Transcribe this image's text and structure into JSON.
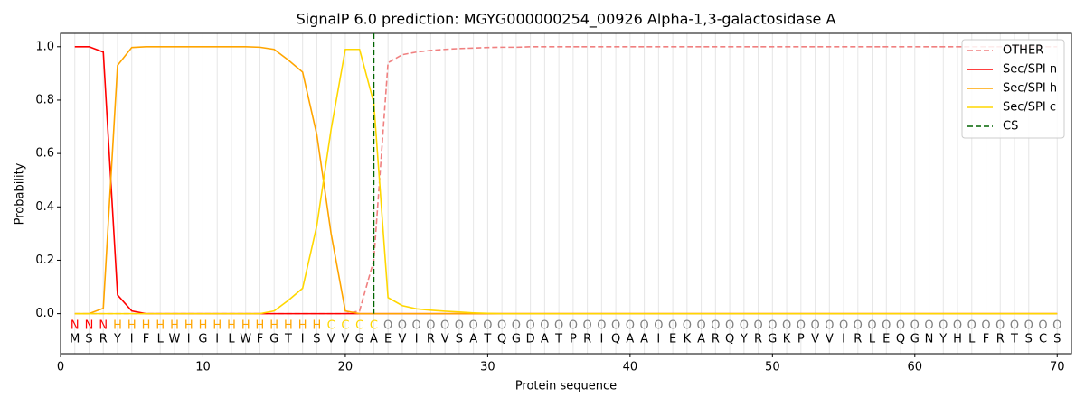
{
  "chart_data": {
    "type": "line",
    "title": "SignalP 6.0 prediction: MGYG000000254_00926 Alpha-1,3-galactosidase A",
    "x_label": "Protein sequence",
    "y_label": "Probability",
    "xlim": [
      0,
      71
    ],
    "ylim": [
      -0.15,
      1.05
    ],
    "xticks": [
      0,
      10,
      20,
      30,
      40,
      50,
      60,
      70
    ],
    "yticks": [
      {
        "value": 0,
        "label": "0.0"
      },
      {
        "value": 0.2,
        "label": "0.2"
      },
      {
        "value": 0.4,
        "label": "0.4"
      },
      {
        "value": 0.6,
        "label": "0.6"
      },
      {
        "value": 0.8,
        "label": "0.8"
      },
      {
        "value": 1,
        "label": "1.0"
      }
    ],
    "legend": "upper right",
    "x": [
      1,
      2,
      3,
      4,
      5,
      6,
      7,
      8,
      9,
      10,
      11,
      12,
      13,
      14,
      15,
      16,
      17,
      18,
      19,
      20,
      21,
      22,
      23,
      24,
      25,
      26,
      27,
      28,
      29,
      30,
      31,
      32,
      33,
      34,
      35,
      36,
      37,
      38,
      39,
      40,
      41,
      42,
      43,
      44,
      45,
      46,
      47,
      48,
      49,
      50,
      51,
      52,
      53,
      54,
      55,
      56,
      57,
      58,
      59,
      60,
      61,
      62,
      63,
      64,
      65,
      66,
      67,
      68,
      69,
      70
    ],
    "series": [
      {
        "name": "OTHER",
        "color": "#f08080",
        "dashed": true,
        "values": [
          0,
          0,
          0,
          0,
          0,
          0,
          0,
          0,
          0,
          0,
          0,
          0,
          0,
          0,
          0,
          0,
          0,
          0,
          0,
          0,
          0.01,
          0.2,
          0.94,
          0.97,
          0.98,
          0.986,
          0.99,
          0.993,
          0.995,
          0.997,
          0.998,
          0.998,
          1,
          1,
          1,
          1,
          1,
          1,
          1,
          1,
          1,
          1,
          1,
          1,
          1,
          1,
          1,
          1,
          1,
          1,
          1,
          1,
          1,
          1,
          1,
          1,
          1,
          1,
          1,
          1,
          1,
          1,
          1,
          1,
          1,
          1,
          1,
          1,
          1,
          1
        ]
      },
      {
        "name": "Sec/SPI n",
        "color": "#ff0000",
        "dashed": false,
        "values": [
          1,
          1,
          0.98,
          0.07,
          0.01,
          0,
          0,
          0,
          0,
          0,
          0,
          0,
          0,
          0,
          0,
          0,
          0,
          0,
          0,
          0,
          0,
          0,
          0,
          0,
          0,
          0,
          0,
          0,
          0,
          0,
          0,
          0,
          0,
          0,
          0,
          0,
          0,
          0,
          0,
          0,
          0,
          0,
          0,
          0,
          0,
          0,
          0,
          0,
          0,
          0,
          0,
          0,
          0,
          0,
          0,
          0,
          0,
          0,
          0,
          0,
          0,
          0,
          0,
          0,
          0,
          0,
          0,
          0,
          0,
          0
        ]
      },
      {
        "name": "Sec/SPI h",
        "color": "#ffa500",
        "dashed": false,
        "values": [
          0,
          0,
          0.02,
          0.93,
          0.997,
          1,
          1,
          1,
          1,
          1,
          1,
          1,
          1,
          0.998,
          0.99,
          0.95,
          0.905,
          0.67,
          0.3,
          0.01,
          0,
          0,
          0,
          0,
          0,
          0,
          0,
          0,
          0,
          0,
          0,
          0,
          0,
          0,
          0,
          0,
          0,
          0,
          0,
          0,
          0,
          0,
          0,
          0,
          0,
          0,
          0,
          0,
          0,
          0,
          0,
          0,
          0,
          0,
          0,
          0,
          0,
          0,
          0,
          0,
          0,
          0,
          0,
          0,
          0,
          0,
          0,
          0,
          0,
          0
        ]
      },
      {
        "name": "Sec/SPI c",
        "color": "#ffd700",
        "dashed": false,
        "values": [
          0,
          0,
          0,
          0,
          0,
          0,
          0,
          0,
          0,
          0,
          0,
          0,
          0,
          0,
          0.01,
          0.05,
          0.095,
          0.33,
          0.69,
          0.99,
          0.99,
          0.79,
          0.06,
          0.03,
          0.018,
          0.013,
          0.009,
          0.006,
          0.003,
          0.001,
          0,
          0,
          0,
          0,
          0,
          0,
          0,
          0,
          0,
          0,
          0,
          0,
          0,
          0,
          0,
          0,
          0,
          0,
          0,
          0,
          0,
          0,
          0,
          0,
          0,
          0,
          0,
          0,
          0,
          0,
          0,
          0,
          0,
          0,
          0,
          0,
          0,
          0,
          0,
          0
        ]
      }
    ],
    "cs": {
      "name": "CS",
      "x": 22,
      "color": "#006400"
    },
    "sequence": [
      "M",
      "S",
      "R",
      "Y",
      "I",
      "F",
      "L",
      "W",
      "I",
      "G",
      "I",
      "L",
      "W",
      "F",
      "G",
      "T",
      "I",
      "S",
      "V",
      "V",
      "G",
      "A",
      "E",
      "V",
      "I",
      "R",
      "V",
      "S",
      "A",
      "T",
      "Q",
      "G",
      "D",
      "A",
      "T",
      "P",
      "R",
      "I",
      "Q",
      "A",
      "A",
      "I",
      "E",
      "K",
      "A",
      "R",
      "Q",
      "Y",
      "R",
      "G",
      "K",
      "P",
      "V",
      "V",
      "I",
      "R",
      "L",
      "E",
      "Q",
      "G",
      "N",
      "Y",
      "H",
      "L",
      "F",
      "R",
      "T",
      "S",
      "C",
      "S"
    ],
    "labels": [
      "N",
      "N",
      "N",
      "H",
      "H",
      "H",
      "H",
      "H",
      "H",
      "H",
      "H",
      "H",
      "H",
      "H",
      "H",
      "H",
      "H",
      "H",
      "C",
      "C",
      "C",
      "C",
      "O",
      "O",
      "O",
      "O",
      "O",
      "O",
      "O",
      "O",
      "O",
      "O",
      "O",
      "O",
      "O",
      "O",
      "O",
      "O",
      "O",
      "O",
      "O",
      "O",
      "O",
      "O",
      "O",
      "O",
      "O",
      "O",
      "O",
      "O",
      "O",
      "O",
      "O",
      "O",
      "O",
      "O",
      "O",
      "O",
      "O",
      "O",
      "O",
      "O",
      "O",
      "O",
      "O",
      "O",
      "O",
      "O",
      "O",
      "O"
    ],
    "label_colors": {
      "N": "#ff0000",
      "H": "#ffa500",
      "C": "#ffd700",
      "O": "#808080"
    }
  }
}
